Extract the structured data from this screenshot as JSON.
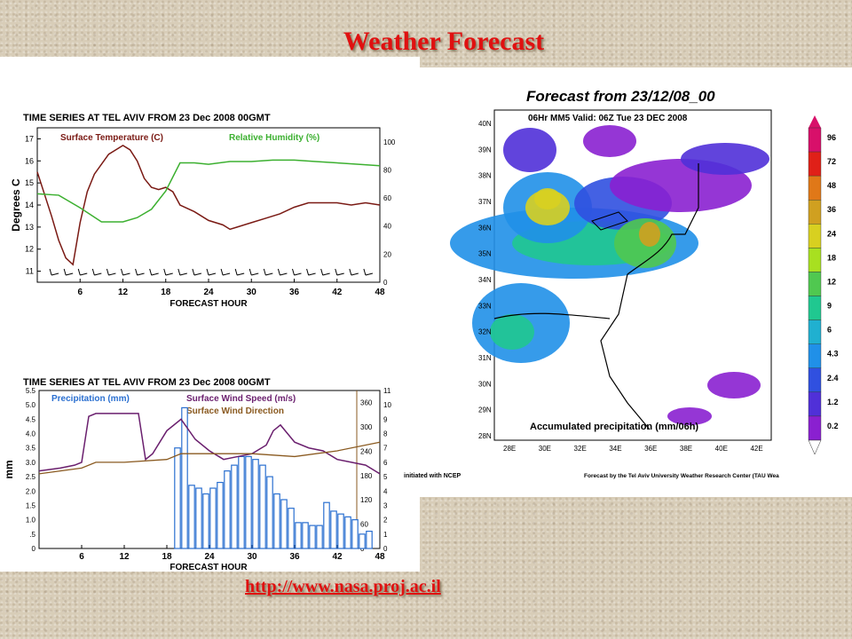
{
  "slide": {
    "title": "Weather Forecast",
    "url": "http://www.nasa.proj.ac.il",
    "title_color": "#e01010"
  },
  "chart_data": [
    {
      "type": "line",
      "title": "TIME SERIES AT TEL AVIV      FROM 23 Dec 2008 00GMT",
      "xlabel": "FORECAST HOUR",
      "ylabel": "Degrees C",
      "x_ticks": [
        6,
        12,
        18,
        24,
        30,
        36,
        42,
        48
      ],
      "xlim": [
        0,
        48
      ],
      "ylim": [
        10.5,
        17.5
      ],
      "y_ticks": [
        11,
        12,
        13,
        14,
        15,
        16,
        17
      ],
      "y2lim": [
        0,
        110
      ],
      "y2_ticks": [
        0,
        20,
        40,
        60,
        80,
        100
      ],
      "series": [
        {
          "name": "Surface Temperature (C)",
          "color": "#7a1a14",
          "axis": "left",
          "x": [
            0,
            1,
            2,
            3,
            4,
            5,
            6,
            7,
            8,
            10,
            12,
            13,
            14,
            15,
            16,
            17,
            18,
            19,
            20,
            22,
            24,
            26,
            27,
            28,
            30,
            32,
            34,
            36,
            38,
            40,
            42,
            44,
            46,
            48
          ],
          "values": [
            15.5,
            14.5,
            13.5,
            12.4,
            11.6,
            11.3,
            13.2,
            14.6,
            15.4,
            16.3,
            16.7,
            16.5,
            16.0,
            15.2,
            14.8,
            14.7,
            14.8,
            14.6,
            14.0,
            13.7,
            13.3,
            13.1,
            12.9,
            13.0,
            13.2,
            13.4,
            13.6,
            13.9,
            14.1,
            14.1,
            14.1,
            14.0,
            14.1,
            14.0
          ]
        },
        {
          "name": "Relative Humidity (%)",
          "color": "#3cb030",
          "axis": "right",
          "x": [
            0,
            3,
            6,
            9,
            12,
            14,
            16,
            18,
            20,
            22,
            24,
            27,
            30,
            33,
            36,
            39,
            42,
            45,
            48
          ],
          "values": [
            63,
            62,
            53,
            43,
            43,
            46,
            52,
            65,
            85,
            85,
            84,
            86,
            86,
            87,
            87,
            86,
            85,
            84,
            83
          ]
        }
      ]
    },
    {
      "type": "bar",
      "title": "TIME SERIES AT TEL AVIV      FROM 23 Dec 2008 00GMT",
      "xlabel": "FORECAST HOUR",
      "ylabel": "mm",
      "x_ticks": [
        6,
        12,
        18,
        24,
        30,
        36,
        42,
        48
      ],
      "xlim": [
        0,
        48
      ],
      "ylim": [
        0,
        5.5
      ],
      "y_ticks": [
        "0",
        ".5",
        "1.0",
        "1.5",
        "2.0",
        "2.5",
        "3.0",
        "3.5",
        "4.0",
        "4.5",
        "5.0",
        "5.5"
      ],
      "y2_ticks": [
        0,
        1,
        2,
        3,
        4,
        5,
        6,
        7,
        8,
        9,
        10,
        11
      ],
      "y3_ticks": [
        0,
        60,
        120,
        180,
        240,
        300,
        360
      ],
      "bars": {
        "name": "Precipitation (mm)",
        "color": "#2a6fd0",
        "x": [
          19.5,
          20.5,
          21.5,
          22.5,
          23.5,
          24.5,
          25.5,
          26.5,
          27.5,
          28.5,
          29.5,
          30.5,
          31.5,
          32.5,
          33.5,
          34.5,
          35.5,
          36.5,
          37.5,
          38.5,
          39.5,
          40.5,
          41.5,
          42.5,
          43.5,
          44.5,
          45.5,
          46.5
        ],
        "values": [
          3.5,
          4.9,
          2.2,
          2.1,
          1.9,
          2.1,
          2.3,
          2.7,
          2.9,
          3.2,
          3.2,
          3.1,
          2.9,
          2.5,
          1.9,
          1.7,
          1.4,
          0.9,
          0.9,
          0.8,
          0.8,
          1.6,
          1.3,
          1.2,
          1.1,
          1.0,
          0.5,
          0.6
        ]
      },
      "series": [
        {
          "name": "Surface Wind Speed (m/s)",
          "color": "#6a1f6e",
          "x": [
            0,
            3,
            5,
            6,
            7,
            8,
            10,
            12,
            14,
            15,
            16,
            18,
            20,
            22,
            24,
            26,
            28,
            30,
            32,
            33,
            34,
            36,
            38,
            40,
            42,
            44,
            46,
            48
          ],
          "values": [
            2.7,
            2.8,
            2.9,
            3.0,
            4.6,
            4.7,
            4.7,
            4.7,
            4.7,
            3.1,
            3.3,
            4.1,
            4.5,
            3.8,
            3.4,
            3.1,
            3.2,
            3.3,
            3.6,
            4.1,
            4.3,
            3.7,
            3.5,
            3.4,
            3.1,
            3.0,
            2.9,
            2.6
          ]
        },
        {
          "name": "Surface Wind Direction",
          "color": "#8a5a20",
          "x": [
            0,
            6,
            8,
            12,
            18,
            20,
            24,
            30,
            36,
            42,
            48
          ],
          "values": [
            2.6,
            2.8,
            3.0,
            3.0,
            3.1,
            3.3,
            3.3,
            3.3,
            3.2,
            3.4,
            3.7
          ]
        }
      ]
    },
    {
      "type": "heatmap",
      "title": "Forecast from 23/12/08_00",
      "subtitle": "06Hr MM5  Valid: 06Z Tue 23 DEC 2008",
      "annotation": "Accumulated precipitation (mm/06h)",
      "x_ticks": [
        "28E",
        "30E",
        "32E",
        "34E",
        "36E",
        "38E",
        "40E",
        "42E"
      ],
      "y_ticks": [
        "40N",
        "39N",
        "38N",
        "37N",
        "36N",
        "35N",
        "34N",
        "33N",
        "32N",
        "31N",
        "30N",
        "29N",
        "28N"
      ],
      "colorbar": {
        "levels": [
          "96",
          "72",
          "48",
          "36",
          "24",
          "18",
          "12",
          "9",
          "6",
          "4.3",
          "2.4",
          "1.2",
          "0.2"
        ],
        "colors": [
          "#d8106a",
          "#e02018",
          "#e07818",
          "#d0a020",
          "#d8d020",
          "#a8e020",
          "#50c850",
          "#20c890",
          "#20b0d0",
          "#2090e8",
          "#3050e0",
          "#5030d8",
          "#8a20d0"
        ]
      },
      "footer_left": "initiated with NCEP",
      "footer_right": "Forecast by the Tel Aviv University Weather Research Center (TAU Wea"
    }
  ]
}
